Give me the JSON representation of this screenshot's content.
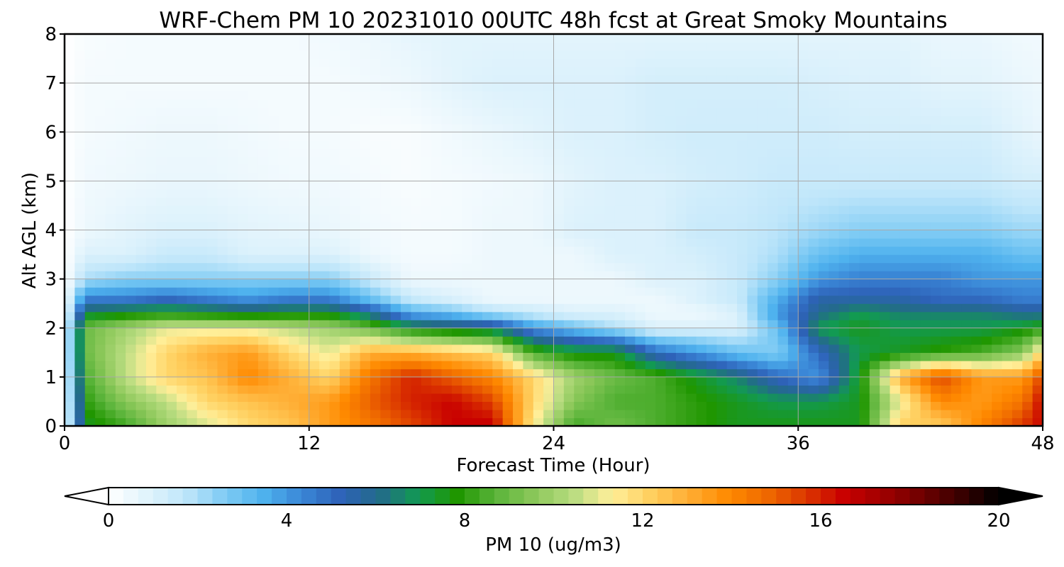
{
  "chart_data": {
    "type": "heatmap",
    "title": "WRF-Chem PM 10  20231010 00UTC 48h fcst at Great Smoky Mountains",
    "xlabel": "Forecast Time (Hour)",
    "ylabel": "Alt AGL (km)",
    "xlim": [
      0,
      48
    ],
    "ylim": [
      0,
      8
    ],
    "x_ticks": [
      0,
      12,
      24,
      36,
      48
    ],
    "y_ticks": [
      0,
      1,
      2,
      3,
      4,
      5,
      6,
      7,
      8
    ],
    "grid": true,
    "colorbar": {
      "label": "PM 10  (ug/m3)",
      "range": [
        0,
        20
      ],
      "ticks": [
        0,
        4,
        8,
        12,
        16,
        20
      ],
      "extend": "both",
      "colors": [
        "#ffffff",
        "#e0f3fc",
        "#bfe6fa",
        "#7fcbf4",
        "#4fb2ee",
        "#3a86d6",
        "#2e62b8",
        "#236b8a",
        "#129a52",
        "#1f9600",
        "#5ab43a",
        "#8cc85a",
        "#b8dc80",
        "#ffef9a",
        "#ffd060",
        "#ffad33",
        "#ff8a00",
        "#ef6a00",
        "#dc3800",
        "#c80000",
        "#a00000",
        "#700000",
        "#3a0000",
        "#000000"
      ]
    },
    "grid_values": {
      "x": [
        0,
        1,
        3,
        5,
        7,
        9,
        11,
        13,
        15,
        17,
        19,
        21,
        23,
        25,
        27,
        29,
        31,
        33,
        35,
        37,
        39,
        41,
        43,
        45,
        47,
        48
      ],
      "y": [
        0.1,
        0.5,
        1.0,
        1.5,
        2.0,
        2.3,
        2.6,
        3.0,
        3.5,
        4.0,
        5.0,
        6.0,
        7.0,
        8.0
      ],
      "z": [
        [
          0,
          7.5,
          8.5,
          10,
          11,
          12,
          12.5,
          13.5,
          14.5,
          15.5,
          16.5,
          16.5,
          11.5,
          8.5,
          9,
          8.5,
          8,
          7.5,
          7.5,
          7.5,
          7.5,
          12,
          12.5,
          14,
          15.5,
          16.5
        ],
        [
          0,
          8,
          9.5,
          10.5,
          12,
          12.5,
          13,
          13.5,
          15,
          16,
          16.5,
          15.5,
          12,
          9.5,
          8.5,
          8.5,
          8,
          7.5,
          7,
          7,
          7.5,
          11,
          14,
          13.5,
          14.5,
          16.5
        ],
        [
          0,
          8.5,
          10.5,
          12,
          12.5,
          14,
          13,
          12,
          14.5,
          16,
          15,
          14,
          12,
          10,
          9,
          8.5,
          7.5,
          6.5,
          5,
          4,
          7.5,
          13,
          15.5,
          13.5,
          13.5,
          15.5
        ],
        [
          0,
          9,
          10.5,
          12,
          13,
          13.5,
          12,
          11,
          13,
          13,
          12.5,
          12,
          8.5,
          7.5,
          7.5,
          5,
          4,
          3,
          2.5,
          5,
          7,
          7.5,
          8,
          8.5,
          9.5,
          12
        ],
        [
          0,
          9,
          10,
          11,
          11,
          11,
          10.5,
          10,
          9,
          7.5,
          7,
          6.5,
          4,
          3,
          2,
          1,
          1,
          1,
          3,
          7,
          7.5,
          7,
          7,
          7,
          7.5,
          8
        ],
        [
          0,
          7,
          7.5,
          7.8,
          7.5,
          7.2,
          7.5,
          7.5,
          6,
          3.5,
          3,
          2,
          1.5,
          1,
          1,
          0.5,
          0.5,
          1,
          4,
          6,
          7,
          6.5,
          6.5,
          6.5,
          6,
          6
        ],
        [
          0,
          4.5,
          4.5,
          5,
          4.5,
          4,
          4.5,
          4.5,
          3,
          1.5,
          1,
          0.5,
          0.5,
          0.5,
          0.5,
          0.5,
          1,
          1.5,
          3.5,
          5.5,
          5.5,
          5.5,
          5,
          5,
          4.5,
          4.5
        ],
        [
          0,
          2,
          2.5,
          2.5,
          2.5,
          2.5,
          2.5,
          2.5,
          1.5,
          0.5,
          0.5,
          0.5,
          0.5,
          0.5,
          0.5,
          1,
          1,
          1.5,
          2.5,
          4,
          4.5,
          4.5,
          4.5,
          4,
          4,
          4
        ],
        [
          0,
          1,
          1,
          1.5,
          1.5,
          1,
          1,
          1,
          0.5,
          0.3,
          0.3,
          0.5,
          0.5,
          0.5,
          1,
          1,
          1.2,
          1.5,
          2,
          3,
          3.5,
          3.5,
          3.5,
          3.5,
          3,
          3
        ],
        [
          0,
          0.5,
          0.8,
          1,
          1,
          0.8,
          0.7,
          0.6,
          0.4,
          0.3,
          0.3,
          0.5,
          0.5,
          1,
          1,
          1,
          1.5,
          1.5,
          1.8,
          2.2,
          2.5,
          2.5,
          2.5,
          2.5,
          2.2,
          2.2
        ],
        [
          0,
          0.4,
          0.5,
          0.6,
          0.6,
          0.5,
          0.4,
          0.4,
          0.3,
          0.2,
          0.3,
          0.4,
          0.5,
          0.8,
          1,
          1,
          1.2,
          1.3,
          1.5,
          1.5,
          1.5,
          1.5,
          1.5,
          1.5,
          1.2,
          1.2
        ],
        [
          0,
          0.3,
          0.4,
          0.5,
          0.5,
          0.4,
          0.3,
          0.3,
          0.2,
          0.2,
          0.4,
          0.6,
          0.8,
          1,
          1,
          1.2,
          1.3,
          1.3,
          1.3,
          1.3,
          1.2,
          1.2,
          1.2,
          1.2,
          0.8,
          0.6
        ],
        [
          0,
          0.3,
          0.3,
          0.3,
          0.3,
          0.3,
          0.3,
          0.3,
          0.4,
          0.5,
          0.8,
          1,
          1,
          1,
          1,
          1.2,
          1.2,
          1.2,
          1.2,
          1.1,
          1,
          1,
          0.8,
          0.8,
          0.6,
          0.5
        ],
        [
          0,
          0.2,
          0.3,
          0.3,
          0.3,
          0.3,
          0.3,
          0.4,
          0.5,
          0.7,
          0.8,
          0.8,
          0.8,
          0.8,
          0.8,
          0.8,
          0.8,
          0.8,
          0.8,
          0.8,
          0.8,
          0.8,
          0.6,
          0.6,
          0.4,
          0.4
        ]
      ]
    }
  }
}
